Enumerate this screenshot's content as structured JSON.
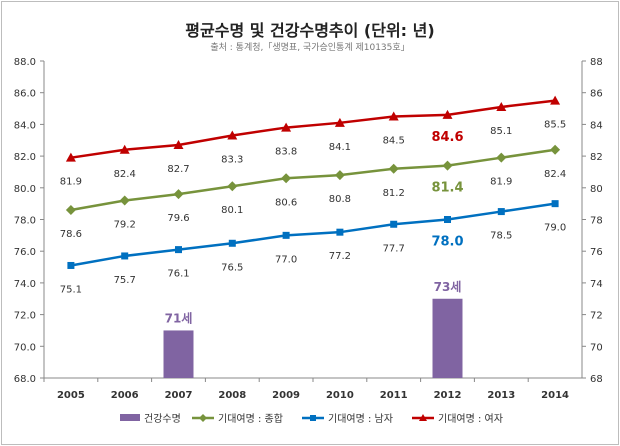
{
  "chart_data": {
    "type": "bar+line",
    "title": "평균수명 및 건강수명추이 (단위: 년)",
    "subtitle": "출처 : 통계청,「생명표, 국가승인통계 제10135호」",
    "categories": [
      "2005",
      "2006",
      "2007",
      "2008",
      "2009",
      "2010",
      "2011",
      "2012",
      "2013",
      "2014"
    ],
    "ylim": [
      68,
      88
    ],
    "y_ticks_left": [
      "68.0",
      "70.0",
      "72.0",
      "74.0",
      "76.0",
      "78.0",
      "80.0",
      "82.0",
      "84.0",
      "86.0",
      "88.0"
    ],
    "y_ticks_right": [
      "68",
      "70",
      "72",
      "74",
      "76",
      "78",
      "80",
      "82",
      "84",
      "86",
      "88"
    ],
    "grid": false,
    "legend_position": "bottom",
    "bars": {
      "name": "건강수명",
      "color": "#8064a2",
      "values": [
        null,
        null,
        71,
        null,
        null,
        null,
        null,
        73,
        null,
        null
      ],
      "labels": [
        null,
        null,
        "71세",
        null,
        null,
        null,
        null,
        "73세",
        null,
        null
      ]
    },
    "series": [
      {
        "name": "기대여명 : 종합",
        "color": "#77933c",
        "marker": "diamond",
        "values": [
          78.6,
          79.2,
          79.6,
          80.1,
          80.6,
          80.8,
          81.2,
          81.4,
          81.9,
          82.4
        ],
        "labels": [
          "78.6",
          "79.2",
          "79.6",
          "80.1",
          "80.6",
          "80.8",
          "81.2",
          "81.4",
          "81.9",
          "82.4"
        ]
      },
      {
        "name": "기대여명 : 남자",
        "color": "#0070c0",
        "marker": "square",
        "values": [
          75.1,
          75.7,
          76.1,
          76.5,
          77.0,
          77.2,
          77.7,
          78.0,
          78.5,
          79.0
        ],
        "labels": [
          "75.1",
          "75.7",
          "76.1",
          "76.5",
          "77.0",
          "77.2",
          "77.7",
          "78.0",
          "78.5",
          "79.0"
        ]
      },
      {
        "name": "기대여명 : 여자",
        "color": "#c00000",
        "marker": "triangle",
        "values": [
          81.9,
          82.4,
          82.7,
          83.3,
          83.8,
          84.1,
          84.5,
          84.6,
          85.1,
          85.5
        ],
        "labels": [
          "81.9",
          "82.4",
          "82.7",
          "83.3",
          "83.8",
          "84.1",
          "84.5",
          "84.6",
          "85.1",
          "85.5"
        ]
      }
    ],
    "highlight_category": "2012"
  }
}
